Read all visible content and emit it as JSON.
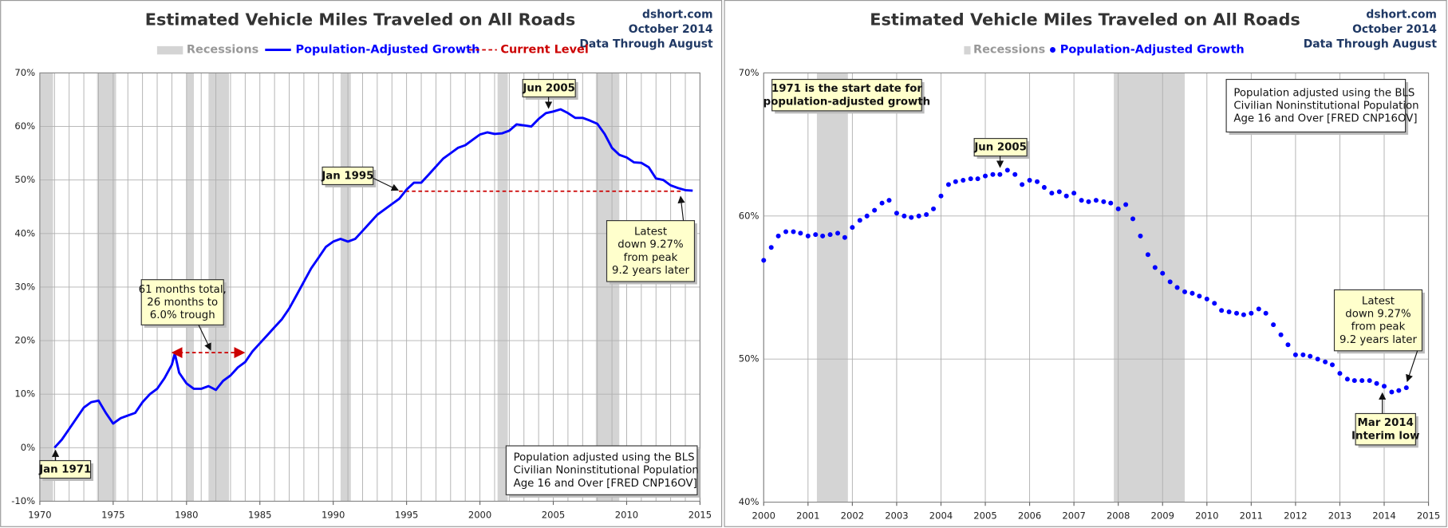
{
  "chart_data": [
    {
      "type": "line",
      "title": "Estimated Vehicle Miles Traveled on All Roads",
      "source": [
        "dshort.com",
        "October 2014",
        "Data Through August"
      ],
      "xlim": [
        1970,
        2015
      ],
      "xticks": [
        1970,
        1975,
        1980,
        1985,
        1990,
        1995,
        2000,
        2005,
        2010,
        2015
      ],
      "xgrid_ticks": [
        1970,
        1971,
        1972,
        1973,
        1974,
        1975,
        1976,
        1977,
        1978,
        1979,
        1980,
        1981,
        1982,
        1983,
        1984,
        1985,
        1986,
        1987,
        1988,
        1989,
        1990,
        1991,
        1992,
        1993,
        1994,
        1995,
        1996,
        1997,
        1998,
        1999,
        2000,
        2001,
        2002,
        2003,
        2004,
        2005,
        2006,
        2007,
        2008,
        2009,
        2010,
        2011,
        2012,
        2013,
        2014,
        2015
      ],
      "ylim": [
        -10,
        70
      ],
      "yticks": [
        {
          "value": -10,
          "label": "-10%"
        },
        {
          "value": 0,
          "label": "0%"
        },
        {
          "value": 10,
          "label": "10%"
        },
        {
          "value": 20,
          "label": "20%"
        },
        {
          "value": 30,
          "label": "30%"
        },
        {
          "value": 40,
          "label": "40%"
        },
        {
          "value": 50,
          "label": "50%"
        },
        {
          "value": 60,
          "label": "60%"
        },
        {
          "value": 70,
          "label": "70%"
        }
      ],
      "grid": true,
      "recessions": {
        "name": "Recessions",
        "color": "#d4d4d4",
        "spans": [
          [
            1970.0,
            1970.9
          ],
          [
            1973.9,
            1975.2
          ],
          [
            1980.0,
            1980.5
          ],
          [
            1981.5,
            1982.9
          ],
          [
            1990.5,
            1991.2
          ],
          [
            2001.2,
            2001.9
          ],
          [
            2007.9,
            2009.5
          ]
        ]
      },
      "series": [
        {
          "name": "Population-Adjusted Growth",
          "color": "#0000ff",
          "x": [
            1971.0,
            1971.5,
            1972.0,
            1972.5,
            1973.0,
            1973.5,
            1974.0,
            1974.5,
            1975.0,
            1975.5,
            1976.0,
            1976.5,
            1977.0,
            1977.5,
            1978.0,
            1978.5,
            1979.0,
            1979.2,
            1979.5,
            1980.0,
            1980.5,
            1981.0,
            1981.5,
            1982.0,
            1982.5,
            1983.0,
            1983.5,
            1984.0,
            1984.5,
            1985.0,
            1985.5,
            1986.0,
            1986.5,
            1987.0,
            1987.5,
            1988.0,
            1988.5,
            1989.0,
            1989.5,
            1990.0,
            1990.5,
            1991.0,
            1991.5,
            1992.0,
            1992.5,
            1993.0,
            1993.5,
            1994.0,
            1994.5,
            1995.0,
            1995.5,
            1996.0,
            1996.5,
            1997.0,
            1997.5,
            1998.0,
            1998.5,
            1999.0,
            1999.5,
            2000.0,
            2000.5,
            2001.0,
            2001.5,
            2002.0,
            2002.5,
            2003.0,
            2003.5,
            2004.0,
            2004.5,
            2005.0,
            2005.5,
            2006.0,
            2006.5,
            2007.0,
            2007.5,
            2008.0,
            2008.5,
            2009.0,
            2009.5,
            2010.0,
            2010.5,
            2011.0,
            2011.5,
            2012.0,
            2012.5,
            2013.0,
            2013.5,
            2014.0,
            2014.5
          ],
          "values": [
            0,
            1.5,
            3.5,
            5.5,
            7.5,
            8.5,
            8.8,
            6.5,
            4.5,
            5.5,
            6.0,
            6.5,
            8.5,
            10.0,
            11.0,
            13.0,
            15.5,
            17.6,
            14.0,
            12.0,
            11.0,
            11.0,
            11.5,
            10.8,
            12.5,
            13.5,
            15.0,
            16.0,
            18.0,
            19.5,
            21.0,
            22.5,
            24.0,
            26.0,
            28.5,
            31.0,
            33.5,
            35.5,
            37.5,
            38.5,
            39.0,
            38.5,
            39.0,
            40.5,
            42.0,
            43.5,
            44.5,
            45.5,
            46.5,
            48.2,
            49.5,
            49.5,
            51.0,
            52.5,
            54.0,
            55.0,
            56.0,
            56.5,
            57.5,
            58.5,
            58.9,
            58.6,
            58.7,
            59.2,
            60.4,
            60.2,
            60.0,
            61.4,
            62.5,
            62.8,
            63.2,
            62.5,
            61.6,
            61.6,
            61.1,
            60.5,
            58.6,
            56.0,
            54.7,
            54.2,
            53.3,
            53.2,
            52.4,
            50.3,
            50.0,
            49.0,
            48.5,
            48.1,
            48.0
          ]
        }
      ],
      "current_level": {
        "name": "Current Level",
        "color": "#cc0000",
        "value": 47.9
      },
      "annotations": [
        {
          "text": [
            "Jun 2005"
          ]
        },
        {
          "text": [
            "Jan 1995"
          ]
        },
        {
          "text": [
            "Jan 1971"
          ]
        },
        {
          "text": [
            "61 months total,",
            "26 months to",
            "6.0% trough"
          ]
        },
        {
          "text": [
            "Latest",
            "down 9.27%",
            "from peak",
            "9.2 years later"
          ]
        }
      ],
      "note": [
        "Population adjusted using the BLS",
        "Civilian Noninstitutional Population",
        "Age 16 and Over  [FRED CNP16OV]"
      ]
    },
    {
      "type": "scatter",
      "title": "Estimated Vehicle Miles Traveled on All Roads",
      "source": [
        "dshort.com",
        "October 2014",
        "Data Through August"
      ],
      "xlim": [
        2000,
        2015
      ],
      "xticks": [
        2000,
        2001,
        2002,
        2003,
        2004,
        2005,
        2006,
        2007,
        2008,
        2009,
        2010,
        2011,
        2012,
        2013,
        2014,
        2015
      ],
      "ylim": [
        40,
        70
      ],
      "yticks": [
        {
          "value": 40,
          "label": "40%"
        },
        {
          "value": 50,
          "label": "50%"
        },
        {
          "value": 60,
          "label": "60%"
        },
        {
          "value": 70,
          "label": "70%"
        }
      ],
      "grid": true,
      "recessions": {
        "name": "Recessions",
        "color": "#d4d4d4",
        "spans": [
          [
            2001.2,
            2001.9
          ],
          [
            2007.9,
            2009.5
          ]
        ]
      },
      "series": [
        {
          "name": "Population-Adjusted Growth",
          "color": "#0000ff",
          "x": [
            2000.0,
            2000.17,
            2000.33,
            2000.5,
            2000.67,
            2000.83,
            2001.0,
            2001.17,
            2001.33,
            2001.5,
            2001.67,
            2001.83,
            2002.0,
            2002.17,
            2002.33,
            2002.5,
            2002.67,
            2002.83,
            2003.0,
            2003.17,
            2003.33,
            2003.5,
            2003.67,
            2003.83,
            2004.0,
            2004.17,
            2004.33,
            2004.5,
            2004.67,
            2004.83,
            2005.0,
            2005.17,
            2005.33,
            2005.5,
            2005.67,
            2005.83,
            2006.0,
            2006.17,
            2006.33,
            2006.5,
            2006.67,
            2006.83,
            2007.0,
            2007.17,
            2007.33,
            2007.5,
            2007.67,
            2007.83,
            2008.0,
            2008.17,
            2008.33,
            2008.5,
            2008.67,
            2008.83,
            2009.0,
            2009.17,
            2009.33,
            2009.5,
            2009.67,
            2009.83,
            2010.0,
            2010.17,
            2010.33,
            2010.5,
            2010.67,
            2010.83,
            2011.0,
            2011.17,
            2011.33,
            2011.5,
            2011.67,
            2011.83,
            2012.0,
            2012.17,
            2012.33,
            2012.5,
            2012.67,
            2012.83,
            2013.0,
            2013.17,
            2013.33,
            2013.5,
            2013.67,
            2013.83,
            2014.0,
            2014.17,
            2014.33,
            2014.5
          ],
          "values": [
            56.9,
            57.8,
            58.6,
            58.9,
            58.9,
            58.8,
            58.6,
            58.7,
            58.6,
            58.7,
            58.8,
            58.5,
            59.2,
            59.7,
            60.0,
            60.4,
            60.9,
            61.1,
            60.2,
            60.0,
            59.9,
            60.0,
            60.1,
            60.5,
            61.4,
            62.2,
            62.4,
            62.5,
            62.6,
            62.6,
            62.8,
            62.9,
            62.9,
            63.2,
            62.9,
            62.2,
            62.5,
            62.4,
            62.0,
            61.6,
            61.7,
            61.4,
            61.6,
            61.1,
            61.0,
            61.1,
            61.0,
            60.9,
            60.5,
            60.8,
            59.8,
            58.6,
            57.3,
            56.4,
            56.0,
            55.4,
            55.0,
            54.7,
            54.6,
            54.4,
            54.2,
            53.9,
            53.4,
            53.3,
            53.2,
            53.1,
            53.2,
            53.5,
            53.2,
            52.4,
            51.7,
            51.0,
            50.3,
            50.3,
            50.2,
            50.0,
            49.8,
            49.6,
            49.0,
            48.6,
            48.5,
            48.5,
            48.5,
            48.3,
            48.1,
            47.7,
            47.8,
            48.0
          ]
        }
      ],
      "annotations": [
        {
          "text": [
            "1971 is the start date for",
            "population-adjusted growth"
          ]
        },
        {
          "text": [
            "Jun 2005"
          ]
        },
        {
          "text": [
            "Latest",
            "down 9.27%",
            "from peak",
            "9.2 years later"
          ]
        },
        {
          "text": [
            "Mar 2014",
            "Interim low"
          ]
        }
      ],
      "note": [
        "Population adjusted using the BLS",
        "Civilian Noninstitutional Population",
        "Age 16 and Over  [FRED CNP16OV]"
      ]
    }
  ]
}
